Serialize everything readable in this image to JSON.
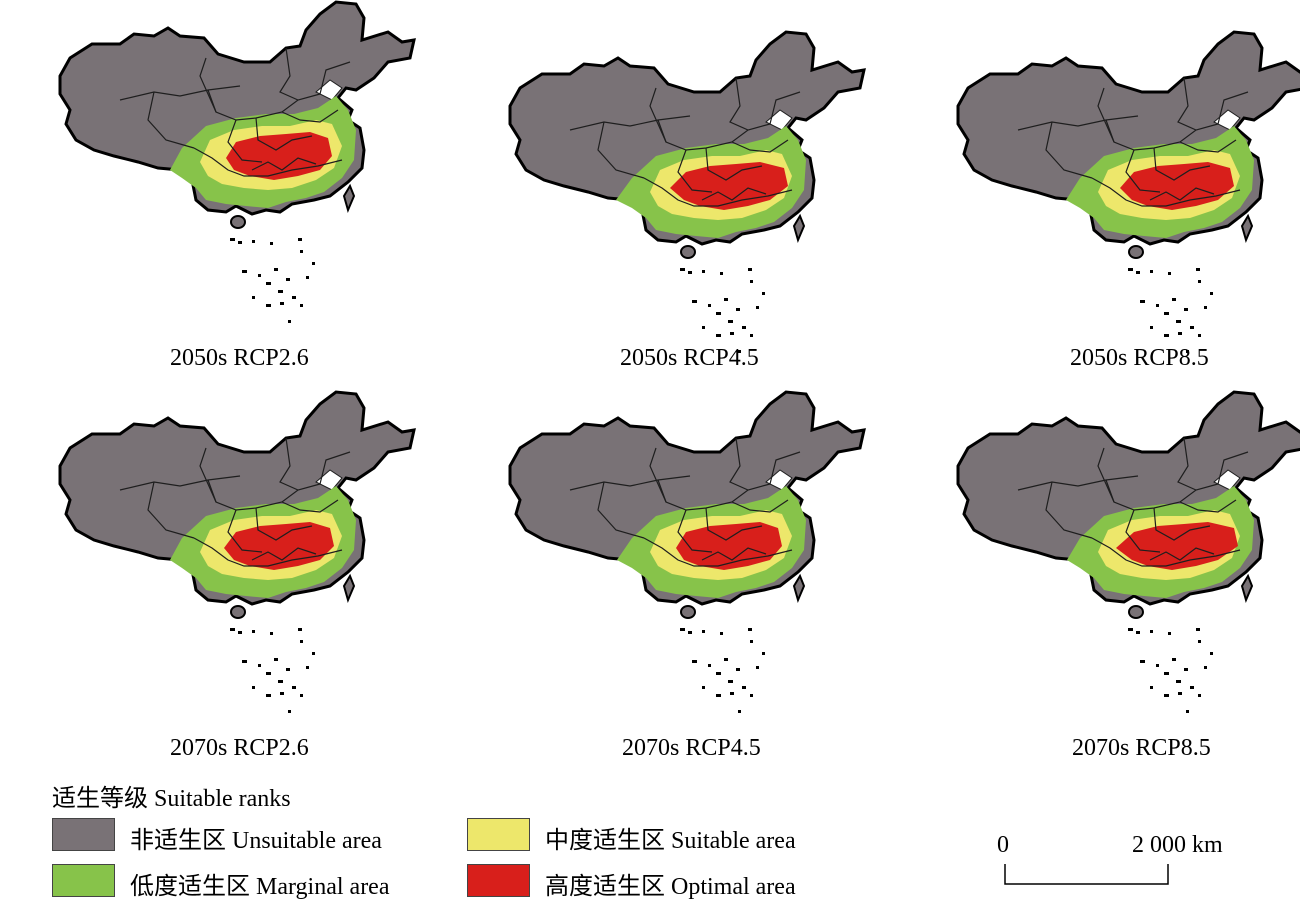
{
  "colors": {
    "unsuitable": "#797276",
    "marginal": "#87c34a",
    "suitable": "#ede76b",
    "optimal": "#d81f1b",
    "outline": "#000000",
    "province_lines": "#1e1e1e",
    "sea": "#ffffff"
  },
  "panels": [
    {
      "caption": "2050s RCP2.6",
      "variant": 0
    },
    {
      "caption": "2050s RCP4.5",
      "variant": 1
    },
    {
      "caption": "2050s RCP8.5",
      "variant": 2
    },
    {
      "caption": "2070s RCP2.6",
      "variant": 3
    },
    {
      "caption": "2070s RCP4.5",
      "variant": 4
    },
    {
      "caption": "2070s RCP8.5",
      "variant": 5
    }
  ],
  "legend": {
    "title": "适生等级 Suitable ranks",
    "items": [
      {
        "label": "非适生区 Unsuitable area",
        "class": "unsuitable",
        "color": "#797276"
      },
      {
        "label": "低度适生区 Marginal area",
        "class": "marginal",
        "color": "#87c34a"
      },
      {
        "label": "中度适生区 Suitable area",
        "class": "suitable",
        "color": "#ede76b"
      },
      {
        "label": "高度适生区 Optimal area",
        "class": "optimal",
        "color": "#d81f1b"
      }
    ]
  },
  "scale_bar": {
    "start_label": "0",
    "end_label": "2 000 km"
  }
}
